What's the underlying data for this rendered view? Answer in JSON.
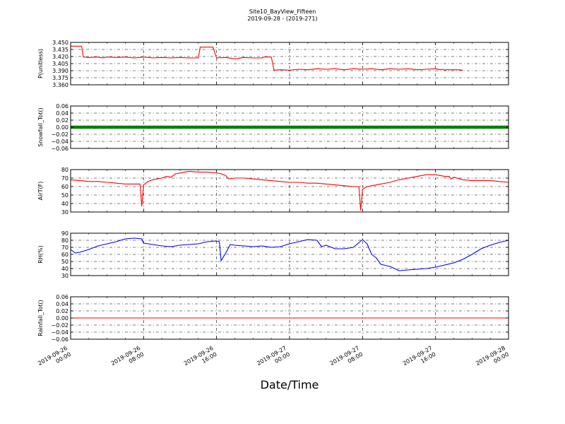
{
  "chart_data": {
    "type": "line",
    "title": "Site10_BayView_Fifteen",
    "subtitle": "2019-09-28 - (2019-271)",
    "xlabel": "Date/Time",
    "xlim_hours": [
      0,
      48
    ],
    "xticks": [
      {
        "hour": 0,
        "line1": "2019-09-26",
        "line2": "00:00"
      },
      {
        "hour": 8,
        "line1": "2019-09-26",
        "line2": "08:00"
      },
      {
        "hour": 16,
        "line1": "2019-09-26",
        "line2": "16:00"
      },
      {
        "hour": 24,
        "line1": "2019-09-27",
        "line2": "00:00"
      },
      {
        "hour": 32,
        "line1": "2019-09-27",
        "line2": "08:00"
      },
      {
        "hour": 40,
        "line1": "2019-09-27",
        "line2": "16:00"
      },
      {
        "hour": 48,
        "line1": "2019-09-28",
        "line2": "00:00"
      }
    ],
    "grid": true,
    "panels": [
      {
        "ylabel": "P(unitless)",
        "ylim": [
          3.36,
          3.45
        ],
        "yticks": [
          "3.360",
          "3.375",
          "3.390",
          "3.405",
          "3.420",
          "3.435",
          "3.450"
        ],
        "ytick_values": [
          3.36,
          3.375,
          3.39,
          3.405,
          3.42,
          3.435,
          3.45
        ],
        "color": "#ff0000",
        "marker": "none",
        "points": [
          [
            0,
            3.442
          ],
          [
            1.2,
            3.442
          ],
          [
            1.4,
            3.419
          ],
          [
            2,
            3.418
          ],
          [
            3,
            3.419
          ],
          [
            3.5,
            3.417
          ],
          [
            4,
            3.419
          ],
          [
            5,
            3.418
          ],
          [
            6,
            3.419
          ],
          [
            7,
            3.417
          ],
          [
            8,
            3.419
          ],
          [
            9,
            3.417
          ],
          [
            10,
            3.418
          ],
          [
            11,
            3.417
          ],
          [
            12,
            3.418
          ],
          [
            13,
            3.417
          ],
          [
            14,
            3.417
          ],
          [
            14.2,
            3.44
          ],
          [
            15,
            3.44
          ],
          [
            15.6,
            3.44
          ],
          [
            16,
            3.417
          ],
          [
            17,
            3.418
          ],
          [
            18,
            3.415
          ],
          [
            19,
            3.418
          ],
          [
            20,
            3.417
          ],
          [
            21,
            3.417
          ],
          [
            21.2,
            3.419
          ],
          [
            22,
            3.419
          ],
          [
            22.3,
            3.391
          ],
          [
            23,
            3.392
          ],
          [
            24,
            3.391
          ],
          [
            25,
            3.393
          ],
          [
            26,
            3.392
          ],
          [
            27,
            3.394
          ],
          [
            28,
            3.393
          ],
          [
            29,
            3.394
          ],
          [
            30,
            3.392
          ],
          [
            31,
            3.394
          ],
          [
            32,
            3.393
          ],
          [
            33,
            3.394
          ],
          [
            34,
            3.392
          ],
          [
            35,
            3.394
          ],
          [
            36,
            3.393
          ],
          [
            37,
            3.394
          ],
          [
            38,
            3.392
          ],
          [
            39,
            3.393
          ],
          [
            40,
            3.394
          ],
          [
            41,
            3.391
          ],
          [
            42,
            3.392
          ],
          [
            43,
            3.391
          ],
          [
            40.5,
            3.392
          ],
          [
            41.5,
            3.392
          ],
          [
            42.5,
            3.392
          ],
          [
            40.9,
            3.393
          ],
          [
            41.2,
            3.392
          ],
          [
            41.4,
            3.392
          ],
          [
            41.47,
            3.392
          ],
          [
            41.49,
            3.392
          ],
          [
            41.495,
            3.392
          ],
          [
            41.5,
            3.392
          ]
        ]
      },
      {
        "ylabel": "Snowfall_Tot()",
        "ylim": [
          -0.06,
          0.06
        ],
        "yticks": [
          "−0.06",
          "−0.04",
          "−0.02",
          "0.00",
          "0.02",
          "0.04",
          "0.06"
        ],
        "ytick_values": [
          -0.06,
          -0.04,
          -0.02,
          0,
          0.02,
          0.04,
          0.06
        ],
        "color": "#008000",
        "marker": "dot",
        "points": [
          [
            0,
            0
          ],
          [
            48,
            0
          ]
        ]
      },
      {
        "ylabel": "AirT(F)",
        "ylim": [
          30,
          80
        ],
        "yticks": [
          "30",
          "40",
          "50",
          "60",
          "70",
          "80"
        ],
        "ytick_values": [
          30,
          40,
          50,
          60,
          70,
          80
        ],
        "color": "#ff0000",
        "marker": "none",
        "points": [
          [
            0,
            68
          ],
          [
            1,
            67
          ],
          [
            2,
            66
          ],
          [
            3,
            66
          ],
          [
            4,
            65
          ],
          [
            5,
            64
          ],
          [
            6,
            63
          ],
          [
            7,
            63
          ],
          [
            7.6,
            63
          ],
          [
            7.8,
            37
          ],
          [
            8,
            62
          ],
          [
            8.5,
            66
          ],
          [
            9,
            68
          ],
          [
            10,
            70
          ],
          [
            10.5,
            72
          ],
          [
            11,
            71
          ],
          [
            11.5,
            75
          ],
          [
            12,
            76
          ],
          [
            12.5,
            77
          ],
          [
            13,
            78
          ],
          [
            14,
            77
          ],
          [
            15,
            77
          ],
          [
            16,
            76
          ],
          [
            16.5,
            75
          ],
          [
            17,
            73
          ],
          [
            17.3,
            69
          ],
          [
            18,
            70
          ],
          [
            19,
            70
          ],
          [
            20,
            69
          ],
          [
            21,
            68
          ],
          [
            22,
            67
          ],
          [
            23,
            66
          ],
          [
            24,
            65
          ],
          [
            25,
            65
          ],
          [
            26,
            64
          ],
          [
            27,
            64
          ],
          [
            28,
            63
          ],
          [
            29,
            62
          ],
          [
            30,
            61
          ],
          [
            31,
            60
          ],
          [
            31.6,
            60
          ],
          [
            31.8,
            32
          ],
          [
            32,
            57
          ],
          [
            32.5,
            60
          ],
          [
            33,
            61
          ],
          [
            34,
            63
          ],
          [
            35,
            65
          ],
          [
            36,
            68
          ],
          [
            37,
            70
          ],
          [
            38,
            72
          ],
          [
            39,
            74
          ],
          [
            40,
            74
          ],
          [
            41,
            72
          ],
          [
            41.5,
            72
          ],
          [
            41.7,
            69
          ],
          [
            42,
            71
          ],
          [
            43,
            68
          ],
          [
            44,
            67
          ],
          [
            45,
            67
          ],
          [
            46,
            67
          ],
          [
            47,
            66
          ],
          [
            48,
            65
          ]
        ]
      },
      {
        "ylabel": "RH(%)",
        "ylim": [
          30,
          90
        ],
        "yticks": [
          "30",
          "40",
          "50",
          "60",
          "70",
          "80",
          "90"
        ],
        "ytick_values": [
          30,
          40,
          50,
          60,
          70,
          80,
          90
        ],
        "color": "#0000ff",
        "marker": "none",
        "points": [
          [
            0,
            67
          ],
          [
            0.5,
            62
          ],
          [
            1,
            63
          ],
          [
            2,
            67
          ],
          [
            3,
            72
          ],
          [
            4,
            75
          ],
          [
            5,
            78
          ],
          [
            6,
            82
          ],
          [
            7,
            83
          ],
          [
            7.8,
            82
          ],
          [
            8,
            76
          ],
          [
            9,
            74
          ],
          [
            10,
            72
          ],
          [
            11,
            71
          ],
          [
            12,
            73
          ],
          [
            13,
            74
          ],
          [
            14,
            75
          ],
          [
            15,
            78
          ],
          [
            16,
            79
          ],
          [
            16.3,
            78
          ],
          [
            16.5,
            51
          ],
          [
            17,
            62
          ],
          [
            17.5,
            74
          ],
          [
            18,
            73
          ],
          [
            19,
            72
          ],
          [
            20,
            71
          ],
          [
            21,
            72
          ],
          [
            22,
            70
          ],
          [
            23,
            71
          ],
          [
            24,
            75
          ],
          [
            25,
            78
          ],
          [
            26,
            81
          ],
          [
            27,
            80
          ],
          [
            27.5,
            71
          ],
          [
            28,
            73
          ],
          [
            29,
            68
          ],
          [
            30,
            68
          ],
          [
            31,
            70
          ],
          [
            32,
            81
          ],
          [
            32.5,
            75
          ],
          [
            33,
            60
          ],
          [
            33.5,
            55
          ],
          [
            34,
            46
          ],
          [
            35,
            43
          ],
          [
            36,
            37
          ],
          [
            37,
            38
          ],
          [
            38,
            39
          ],
          [
            39,
            40
          ],
          [
            40,
            42
          ],
          [
            41,
            45
          ],
          [
            42,
            48
          ],
          [
            43,
            53
          ],
          [
            44,
            60
          ],
          [
            45,
            68
          ],
          [
            46,
            73
          ],
          [
            47,
            77
          ],
          [
            48,
            80
          ]
        ]
      },
      {
        "ylabel": "Rainfall_Tot()",
        "ylim": [
          -0.06,
          0.06
        ],
        "yticks": [
          "−0.06",
          "−0.04",
          "−0.02",
          "0.00",
          "0.02",
          "0.04",
          "0.06"
        ],
        "ytick_values": [
          -0.06,
          -0.04,
          -0.02,
          0,
          0.02,
          0.04,
          0.06
        ],
        "color": "#ff0000",
        "marker": "none",
        "points": [
          [
            0,
            0
          ],
          [
            48,
            0
          ]
        ]
      }
    ]
  }
}
